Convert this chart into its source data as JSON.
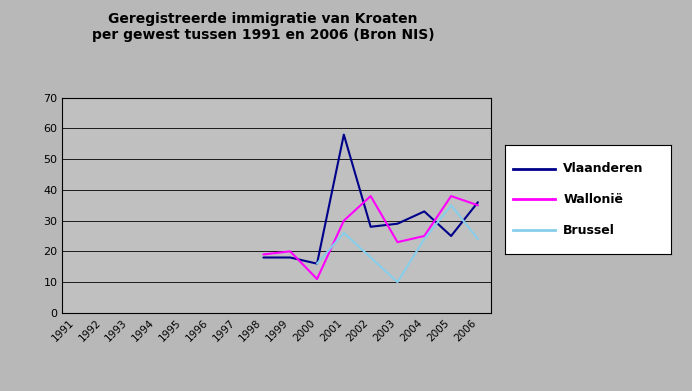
{
  "title_line1": "Geregistreerde immigratie van Kroaten",
  "title_line2": "per gewest tussen 1991 en 2006 (Bron NIS)",
  "years": [
    1991,
    1992,
    1993,
    1994,
    1995,
    1996,
    1997,
    1998,
    1999,
    2000,
    2001,
    2002,
    2003,
    2004,
    2005,
    2006
  ],
  "vlaanderen": [
    null,
    null,
    null,
    null,
    null,
    null,
    null,
    18,
    18,
    16,
    58,
    28,
    29,
    33,
    25,
    36
  ],
  "wallonie": [
    null,
    null,
    null,
    null,
    null,
    null,
    null,
    19,
    20,
    11,
    30,
    38,
    23,
    25,
    38,
    35
  ],
  "brussel": [
    null,
    null,
    null,
    null,
    null,
    null,
    null,
    null,
    null,
    16,
    26,
    null,
    10,
    24,
    35,
    24
  ],
  "color_vlaanderen": "#00008B",
  "color_wallonie": "#FF00FF",
  "color_brussel": "#87CEEB",
  "ylim": [
    0,
    70
  ],
  "yticks": [
    0,
    10,
    20,
    30,
    40,
    50,
    60,
    70
  ],
  "plot_bg": "#C0C0C0",
  "fig_bg": "#B8B8B8",
  "legend_labels": [
    "Vlaanderen",
    "Wallonië",
    "Brussel"
  ]
}
